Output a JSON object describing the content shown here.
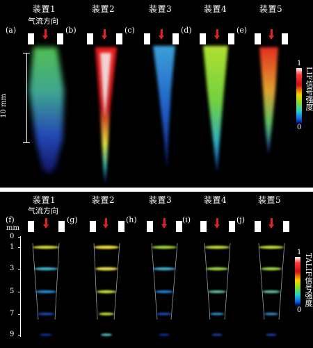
{
  "top_panel": {
    "device_labels": [
      "装置1",
      "装置2",
      "装置3",
      "装置4",
      "装置5"
    ],
    "sub_labels": [
      "(a)",
      "(b)",
      "(c)",
      "(d)",
      "(e)"
    ],
    "flow_label": "气流方向",
    "scale_bar_label": "10 mm",
    "colorbar": {
      "title": "LIF信号强度",
      "max": "1",
      "min": "0"
    }
  },
  "bottom_panel": {
    "device_labels": [
      "装置1",
      "装置2",
      "装置3",
      "装置4",
      "装置5"
    ],
    "sub_labels": [
      "(f)",
      "(g)",
      "(h)",
      "(i)",
      "(j)"
    ],
    "flow_label": "气流方向",
    "axis_unit": "mm",
    "axis_ticks": [
      "0",
      "1",
      "3",
      "5",
      "7",
      "9"
    ],
    "colorbar": {
      "title": "TALIF信号强度",
      "max": "1",
      "min": "0"
    }
  },
  "colors": {
    "background": "#000000",
    "arrow": "#e02020",
    "slot": "#ffffff"
  }
}
